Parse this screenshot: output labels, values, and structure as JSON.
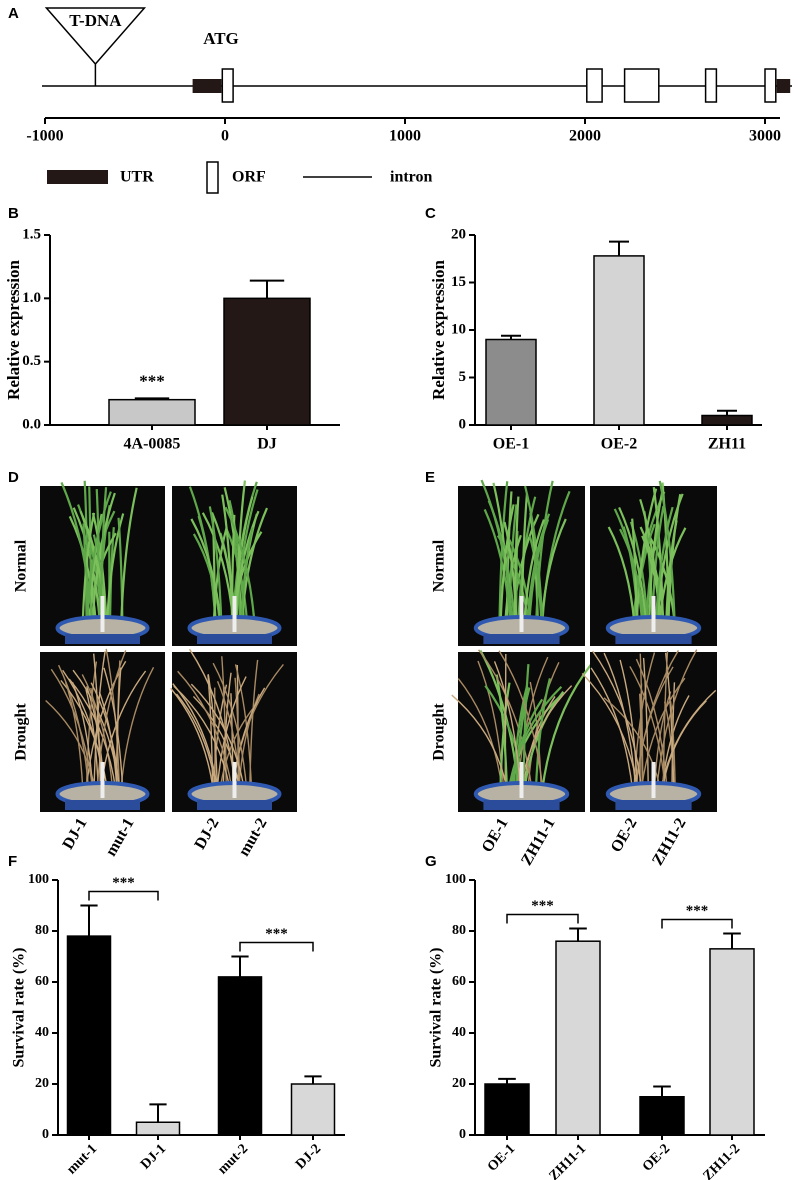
{
  "panel_labels": [
    "A",
    "B",
    "C",
    "D",
    "E",
    "F",
    "G"
  ],
  "gene_diagram": {
    "xlim": [
      -1000,
      3000
    ],
    "xticks": [
      -1000,
      0,
      1000,
      2000,
      3000
    ],
    "insertion": {
      "label": "T-DNA",
      "position": -720
    },
    "start_codon": {
      "label": "ATG",
      "position": 0
    },
    "utr": [
      [
        -180,
        -20
      ],
      [
        3065,
        3140
      ]
    ],
    "orf": [
      [
        -15,
        45
      ],
      [
        2010,
        2095
      ],
      [
        2220,
        2410
      ],
      [
        2670,
        2730
      ],
      [
        3000,
        3060
      ]
    ],
    "legend": {
      "utr": "UTR",
      "orf": "ORF",
      "intron": "intron"
    }
  },
  "photos": [
    {
      "rows": [
        "Normal",
        "Drought"
      ],
      "labels": [
        "DJ-1",
        "mut-1",
        "DJ-2",
        "mut-2"
      ]
    },
    {
      "rows": [
        "Normal",
        "Drought"
      ],
      "labels": [
        "OE-1",
        "ZH11-1",
        "OE-2",
        "ZH11-2"
      ]
    }
  ],
  "chart_data": [
    {
      "type": "bar",
      "ylabel": "Relative expression",
      "categories": [
        "4A-0085",
        "DJ"
      ],
      "values": [
        0.2,
        1.0
      ],
      "errors": [
        0.01,
        0.14
      ],
      "colors": [
        "#c8c8c8",
        "#231815"
      ],
      "ylim": [
        0,
        1.5
      ],
      "yticks": [
        {
          "value": 0,
          "label": "0.0"
        },
        {
          "value": 0.5,
          "label": "0.5"
        },
        {
          "value": 1,
          "label": "1.0"
        },
        {
          "value": 1.5,
          "label": "1.5"
        }
      ],
      "annotations": [
        {
          "category": 0,
          "text": "***"
        }
      ]
    },
    {
      "type": "bar",
      "ylabel": "Relative expression",
      "categories": [
        "OE-1",
        "OE-2",
        "ZH11"
      ],
      "values": [
        9,
        17.8,
        1.0
      ],
      "errors": [
        0.4,
        1.5,
        0.5
      ],
      "colors": [
        "#8c8c8c",
        "#d4d4d4",
        "#231815"
      ],
      "ylim": [
        0,
        20
      ],
      "yticks": [
        0,
        5,
        10,
        15,
        20
      ]
    },
    {
      "type": "bar",
      "ylabel": "Survival rate (%)",
      "categories": [
        "mut-1",
        "DJ-1",
        "mut-2",
        "DJ-2"
      ],
      "values": [
        78,
        5,
        62,
        20
      ],
      "errors": [
        12,
        7,
        8,
        3
      ],
      "colors": [
        "#000000",
        "#d8d8d8",
        "#000000",
        "#d8d8d8"
      ],
      "ylim": [
        0,
        100
      ],
      "yticks": [
        0,
        20,
        40,
        60,
        80,
        100
      ],
      "significance": [
        {
          "text": "***",
          "pair": [
            0,
            1
          ]
        },
        {
          "text": "***",
          "pair": [
            2,
            3
          ]
        }
      ]
    },
    {
      "type": "bar",
      "ylabel": "Survival rate (%)",
      "categories": [
        "OE-1",
        "ZH11-1",
        "OE-2",
        "ZH11-2"
      ],
      "values": [
        20,
        76,
        15,
        73
      ],
      "errors": [
        2,
        5,
        4,
        6
      ],
      "colors": [
        "#000000",
        "#d8d8d8",
        "#000000",
        "#d8d8d8"
      ],
      "ylim": [
        0,
        100
      ],
      "yticks": [
        0,
        20,
        40,
        60,
        80,
        100
      ],
      "significance": [
        {
          "text": "***",
          "pair": [
            0,
            1
          ]
        },
        {
          "text": "***",
          "pair": [
            2,
            3
          ]
        }
      ]
    }
  ]
}
